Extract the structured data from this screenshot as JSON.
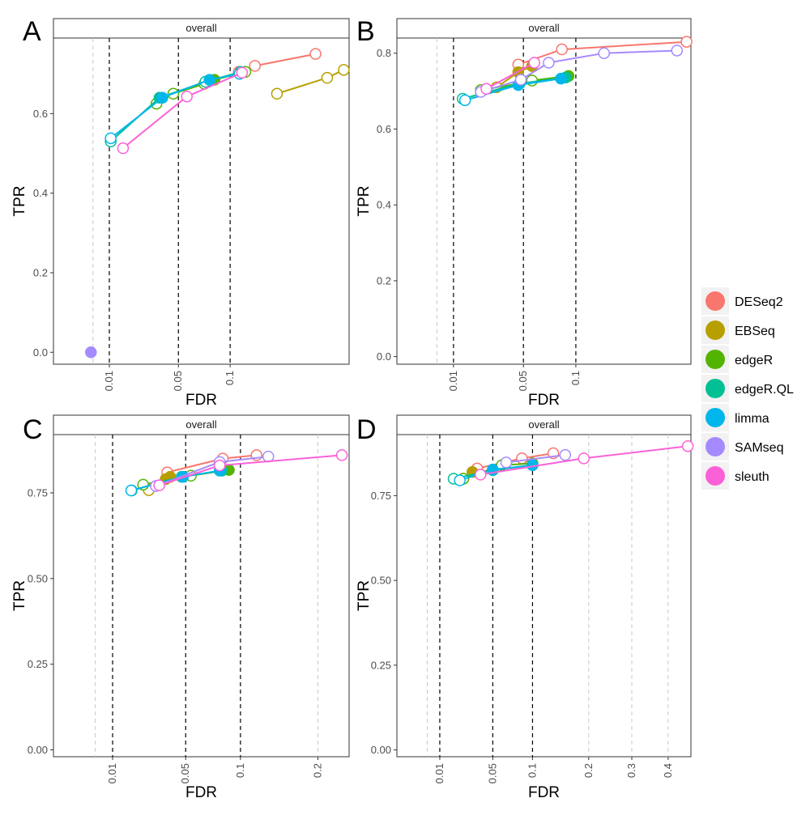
{
  "legend": {
    "items": [
      {
        "name": "DESeq2",
        "color": "#F8766D"
      },
      {
        "name": "EBSeq",
        "color": "#B79F00"
      },
      {
        "name": "edgeR",
        "color": "#53B400"
      },
      {
        "name": "edgeR.QL",
        "color": "#00C094"
      },
      {
        "name": "limma",
        "color": "#00B6EB"
      },
      {
        "name": "SAMseq",
        "color": "#A58AFF"
      },
      {
        "name": "sleuth",
        "color": "#FB61D7"
      }
    ]
  },
  "chart_data": [
    {
      "panel": "A",
      "type": "line",
      "strip": "overall",
      "xlabel": "FDR",
      "ylabel": "TPR",
      "x_scale": "sqrt",
      "xlim": [
        0,
        0.28
      ],
      "ylim": [
        -0.03,
        0.79
      ],
      "x_ticks": [
        0.01,
        0.05,
        0.1
      ],
      "x_tick_labels": [
        "0.01",
        "0.05",
        "0.1"
      ],
      "y_ticks": [
        0,
        0.2,
        0.4,
        0.6
      ],
      "y_tick_labels": [
        "0.0",
        "0.2",
        "0.4",
        "0.6"
      ],
      "vlines_dark": [
        0.01,
        0.05,
        0.1
      ],
      "vlines_light": [
        0.005
      ],
      "series": [
        {
          "name": "DESeq2",
          "points": [
            [
              0.11,
              0.705,
              0
            ],
            [
              0.13,
              0.72,
              0
            ],
            [
              0.22,
              0.75,
              0
            ]
          ]
        },
        {
          "name": "EBSeq",
          "points": [
            [
              0.16,
              0.65,
              0
            ],
            [
              0.24,
              0.69,
              0
            ],
            [
              0.27,
              0.71,
              0
            ]
          ]
        },
        {
          "name": "edgeR",
          "points": [
            [
              0.034,
              0.625,
              0
            ],
            [
              0.046,
              0.65,
              0
            ],
            [
              0.073,
              0.675,
              0
            ],
            [
              0.083,
              0.685,
              1
            ],
            [
              0.118,
              0.705,
              0
            ]
          ]
        },
        {
          "name": "edgeR.QL",
          "points": [
            [
              0.0105,
              0.53,
              0
            ],
            [
              0.036,
              0.64,
              1
            ],
            [
              0.074,
              0.68,
              0
            ],
            [
              0.112,
              0.705,
              0
            ]
          ]
        },
        {
          "name": "limma",
          "points": [
            [
              0.0105,
              0.538,
              0
            ],
            [
              0.038,
              0.64,
              1
            ],
            [
              0.078,
              0.685,
              1
            ],
            [
              0.111,
              0.7,
              0
            ]
          ]
        },
        {
          "name": "SAMseq",
          "points": [
            [
              0.0045,
              0.0,
              1
            ]
          ]
        },
        {
          "name": "sleuth",
          "points": [
            [
              0.0155,
              0.513,
              0
            ],
            [
              0.057,
              0.643,
              0
            ],
            [
              0.114,
              0.703,
              0
            ]
          ]
        }
      ]
    },
    {
      "panel": "B",
      "type": "line",
      "strip": "overall",
      "xlabel": "FDR",
      "ylabel": "TPR",
      "x_scale": "sqrt",
      "xlim": [
        0,
        0.27
      ],
      "ylim": [
        -0.02,
        0.84
      ],
      "x_ticks": [
        0.01,
        0.05,
        0.1
      ],
      "x_tick_labels": [
        "0.01",
        "0.05",
        "0.1"
      ],
      "y_ticks": [
        0,
        0.2,
        0.4,
        0.6,
        0.8
      ],
      "y_tick_labels": [
        "0.0",
        "0.2",
        "0.4",
        "0.6",
        "0.8"
      ],
      "vlines_dark": [
        0.01,
        0.05,
        0.1
      ],
      "vlines_light": [
        0.005
      ],
      "series": [
        {
          "name": "DESeq2",
          "points": [
            [
              0.046,
              0.77,
              0
            ],
            [
              0.085,
              0.81,
              0
            ],
            [
              0.262,
              0.83,
              0
            ]
          ]
        },
        {
          "name": "EBSeq",
          "points": [
            [
              0.031,
              0.71,
              0
            ],
            [
              0.046,
              0.75,
              1
            ],
            [
              0.057,
              0.766,
              1
            ]
          ]
        },
        {
          "name": "edgeR",
          "points": [
            [
              0.022,
              0.703,
              0
            ],
            [
              0.047,
              0.72,
              0
            ],
            [
              0.057,
              0.728,
              0
            ],
            [
              0.092,
              0.74,
              1
            ]
          ]
        },
        {
          "name": "edgeR.QL",
          "points": [
            [
              0.0135,
              0.68,
              0
            ],
            [
              0.047,
              0.72,
              0
            ],
            [
              0.089,
              0.736,
              1
            ]
          ]
        },
        {
          "name": "limma",
          "points": [
            [
              0.0145,
              0.676,
              0
            ],
            [
              0.046,
              0.716,
              1
            ],
            [
              0.084,
              0.733,
              1
            ]
          ]
        },
        {
          "name": "SAMseq",
          "points": [
            [
              0.022,
              0.698,
              0
            ],
            [
              0.048,
              0.73,
              0
            ],
            [
              0.072,
              0.775,
              0
            ],
            [
              0.134,
              0.8,
              0
            ],
            [
              0.245,
              0.807,
              0
            ]
          ]
        },
        {
          "name": "sleuth",
          "points": [
            [
              0.025,
              0.706,
              0
            ],
            [
              0.059,
              0.775,
              0
            ]
          ]
        }
      ]
    },
    {
      "panel": "C",
      "type": "line",
      "strip": "overall",
      "xlabel": "FDR",
      "ylabel": "TPR",
      "x_scale": "sqrt",
      "xlim": [
        0,
        0.25
      ],
      "ylim": [
        -0.02,
        0.92
      ],
      "x_ticks": [
        0.01,
        0.05,
        0.1,
        0.2
      ],
      "x_tick_labels": [
        "0.01",
        "0.05",
        "0.1",
        "0.2"
      ],
      "y_ticks": [
        0,
        0.25,
        0.5,
        0.75
      ],
      "y_tick_labels": [
        "0.00",
        "0.25",
        "0.50",
        "0.75"
      ],
      "vlines_dark": [
        0.01,
        0.05,
        0.1
      ],
      "vlines_light": [
        0.005,
        0.2
      ],
      "series": [
        {
          "name": "DESeq2",
          "points": [
            [
              0.037,
              0.81,
              0
            ],
            [
              0.082,
              0.85,
              0
            ],
            [
              0.118,
              0.86,
              0
            ]
          ]
        },
        {
          "name": "EBSeq",
          "points": [
            [
              0.026,
              0.758,
              0
            ],
            [
              0.036,
              0.79,
              1
            ],
            [
              0.039,
              0.797,
              1
            ]
          ]
        },
        {
          "name": "edgeR",
          "points": [
            [
              0.023,
              0.774,
              0
            ],
            [
              0.054,
              0.8,
              0
            ],
            [
              0.088,
              0.817,
              1
            ]
          ]
        },
        {
          "name": "edgeR.QL",
          "points": [
            [
              0.0175,
              0.757,
              0
            ],
            [
              0.047,
              0.797,
              0
            ],
            [
              0.081,
              0.815,
              1
            ]
          ]
        },
        {
          "name": "limma",
          "points": [
            [
              0.0173,
              0.757,
              0
            ],
            [
              0.048,
              0.797,
              1
            ],
            [
              0.079,
              0.815,
              1
            ]
          ]
        },
        {
          "name": "SAMseq",
          "points": [
            [
              0.03,
              0.77,
              0
            ],
            [
              0.079,
              0.84,
              0
            ],
            [
              0.132,
              0.856,
              0
            ]
          ]
        },
        {
          "name": "sleuth",
          "points": [
            [
              0.032,
              0.772,
              0
            ],
            [
              0.079,
              0.83,
              0
            ],
            [
              0.238,
              0.86,
              0
            ]
          ]
        }
      ]
    },
    {
      "panel": "D",
      "type": "line",
      "strip": "overall",
      "xlabel": "FDR",
      "ylabel": "TPR",
      "x_scale": "sqrt",
      "xlim": [
        0,
        0.47
      ],
      "ylim": [
        -0.02,
        0.93
      ],
      "x_ticks": [
        0.01,
        0.05,
        0.1,
        0.2,
        0.3,
        0.4
      ],
      "x_tick_labels": [
        "0.01",
        "0.05",
        "0.1",
        "0.2",
        "0.3",
        "0.4"
      ],
      "y_ticks": [
        0,
        0.25,
        0.5,
        0.75
      ],
      "y_tick_labels": [
        "0.00",
        "0.25",
        "0.50",
        "0.75"
      ],
      "vlines_dark": [
        0.01,
        0.05,
        0.1
      ],
      "vlines_light": [
        0.005,
        0.2,
        0.3,
        0.4
      ],
      "series": [
        {
          "name": "DESeq2",
          "points": [
            [
              0.035,
              0.83,
              0
            ],
            [
              0.085,
              0.86,
              0
            ],
            [
              0.133,
              0.875,
              0
            ]
          ]
        },
        {
          "name": "EBSeq",
          "points": [
            [
              0.024,
              0.8,
              0
            ],
            [
              0.031,
              0.82,
              1
            ]
          ]
        },
        {
          "name": "edgeR",
          "points": [
            [
              0.024,
              0.8,
              0
            ],
            [
              0.06,
              0.84,
              0
            ],
            [
              0.1,
              0.845,
              1
            ]
          ]
        },
        {
          "name": "edgeR.QL",
          "points": [
            [
              0.0175,
              0.8,
              0
            ],
            [
              0.05,
              0.825,
              0
            ],
            [
              0.1,
              0.84,
              1
            ]
          ]
        },
        {
          "name": "limma",
          "points": [
            [
              0.0215,
              0.795,
              0
            ],
            [
              0.05,
              0.827,
              1
            ],
            [
              0.1,
              0.84,
              1
            ]
          ]
        },
        {
          "name": "SAMseq",
          "points": [
            [
              0.065,
              0.848,
              0
            ],
            [
              0.154,
              0.87,
              0
            ]
          ]
        },
        {
          "name": "sleuth",
          "points": [
            [
              0.038,
              0.812,
              0
            ],
            [
              0.19,
              0.86,
              0
            ],
            [
              0.46,
              0.896,
              0
            ]
          ]
        }
      ]
    }
  ]
}
